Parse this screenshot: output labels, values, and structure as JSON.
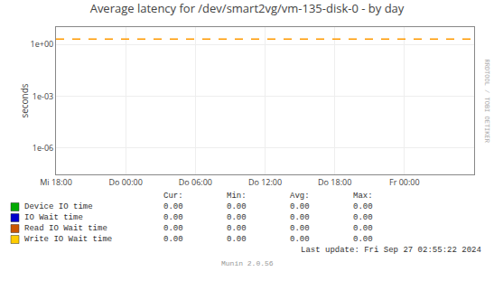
{
  "chart_data": {
    "type": "line",
    "title": "Average latency for /dev/smart2vg/vm-135-disk-0 - by day",
    "ylabel": "seconds",
    "log": "y",
    "grid": true,
    "categories": [
      "Mi 18:00",
      "Do 00:00",
      "Do 06:00",
      "Do 12:00",
      "Do 18:00",
      "Fr 00:00"
    ],
    "ylim": [
      3e-08,
      10
    ],
    "yticks": [
      {
        "value": 1e-06,
        "label": "1e-06"
      },
      {
        "value": 0.001,
        "label": "1e-03"
      },
      {
        "value": 1,
        "label": "1e+00"
      }
    ],
    "series": [
      {
        "name": "Device IO time",
        "color": "#00aa00",
        "values": [
          null,
          null,
          null,
          null,
          null,
          null
        ],
        "summary": [
          {
            "value": 0,
            "label": "0.00"
          },
          {
            "value": 0,
            "label": "0.00"
          },
          {
            "value": 0,
            "label": "0.00"
          },
          {
            "value": 0,
            "label": "0.00"
          }
        ]
      },
      {
        "name": "IO Wait time",
        "color": "#0000cc",
        "values": [
          null,
          null,
          null,
          null,
          null,
          null
        ],
        "summary": [
          {
            "value": 0,
            "label": "0.00"
          },
          {
            "value": 0,
            "label": "0.00"
          },
          {
            "value": 0,
            "label": "0.00"
          },
          {
            "value": 0,
            "label": "0.00"
          }
        ]
      },
      {
        "name": "Read IO Wait time",
        "color": "#cc5500",
        "values": [
          null,
          null,
          null,
          null,
          null,
          null
        ],
        "summary": [
          {
            "value": 0,
            "label": "0.00"
          },
          {
            "value": 0,
            "label": "0.00"
          },
          {
            "value": 0,
            "label": "0.00"
          },
          {
            "value": 0,
            "label": "0.00"
          }
        ]
      },
      {
        "name": "Write IO Wait time",
        "color": "#ffcc00",
        "values": [
          null,
          null,
          null,
          null,
          null,
          null
        ],
        "summary": [
          {
            "value": 0,
            "label": "0.00"
          },
          {
            "value": 0,
            "label": "0.00"
          },
          {
            "value": 0,
            "label": "0.00"
          },
          {
            "value": 0,
            "label": "0.00"
          }
        ]
      }
    ],
    "summary_headers": [
      "Cur:",
      "Min:",
      "Avg:",
      "Max:"
    ],
    "hlines": [
      {
        "value": 2.0,
        "color": "#ff9900",
        "line_style": "dashed"
      }
    ],
    "last_update": "Last update: Fri Sep 27 02:55:22 2024",
    "watermark": "Munin 2.0.56",
    "side_text": "RRDTOOL / TOBI OETIKER"
  }
}
